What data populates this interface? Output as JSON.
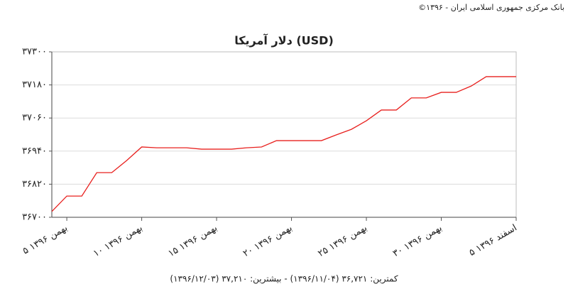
{
  "chart_data": {
    "type": "line",
    "source": "بانک مرکزی جمهوری اسلامی ایران - ۱۳۹۶©",
    "title": "دلار آمریکا (USD)",
    "footer": "کمترین: ۳۶,۷۲۱ (۱۳۹۶/۱۱/۰۴) - بیشترین: ۳۷,۲۱۰ (۱۳۹۶/۱۲/۰۳)",
    "categories": [
      null,
      "۵ بهمن ۱۳۹۶",
      null,
      null,
      null,
      null,
      "۱۰ بهمن ۱۳۹۶",
      null,
      null,
      null,
      null,
      "۱۵ بهمن ۱۳۹۶",
      null,
      null,
      null,
      null,
      "۲۰ بهمن ۱۳۹۶",
      null,
      null,
      null,
      null,
      "۲۵ بهمن ۱۳۹۶",
      null,
      null,
      null,
      null,
      "۳۰ بهمن ۱۳۹۶",
      null,
      null,
      null,
      null,
      "۵ اسفند ۱۳۹۶"
    ],
    "series": [
      {
        "name": "USD",
        "color": "#e8201e",
        "values": [
          36721,
          36777,
          36777,
          36862,
          36862,
          36906,
          36955,
          36952,
          36952,
          36952,
          36947,
          36947,
          36947,
          36952,
          36955,
          36978,
          36978,
          36978,
          36978,
          36999,
          37019,
          37050,
          37089,
          37089,
          37133,
          37133,
          37153,
          37153,
          37176,
          37210,
          37210,
          37210
        ]
      }
    ],
    "ylim": [
      36700,
      37300
    ],
    "yticks": [
      {
        "value": 36700,
        "label": "۳۶۷۰۰"
      },
      {
        "value": 36820,
        "label": "۳۶۸۲۰"
      },
      {
        "value": 36940,
        "label": "۳۶۹۴۰"
      },
      {
        "value": 37060,
        "label": "۳۷۰۶۰"
      },
      {
        "value": 37180,
        "label": "۳۷۱۸۰"
      },
      {
        "value": 37300,
        "label": "۳۷۳۰۰"
      }
    ],
    "grid": true
  }
}
